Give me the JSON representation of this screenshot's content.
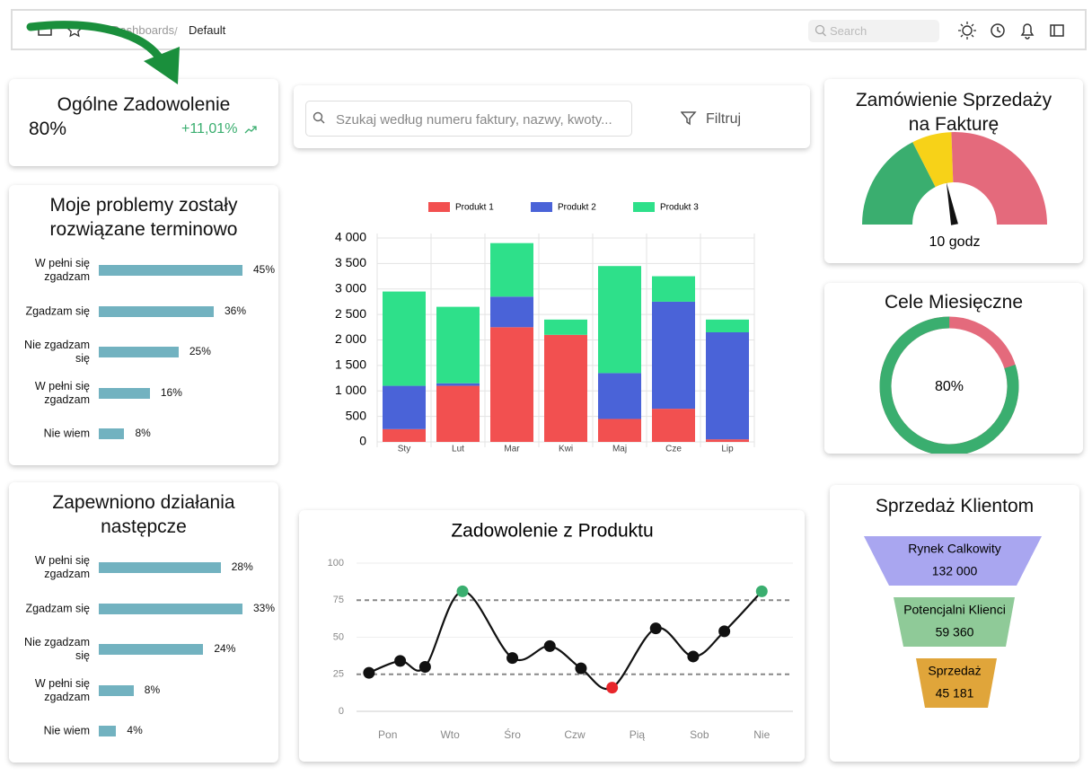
{
  "topbar": {
    "breadcrumb": [
      "Dashboards",
      "Default"
    ],
    "search_placeholder": "Search"
  },
  "satisfaction": {
    "title": "Ogólne Zadowolenie",
    "value": "80%",
    "change": "+11,01%"
  },
  "search": {
    "placeholder": "Szukaj według numeru faktury, nazwy, kwoty...",
    "filter": "Filtruj"
  },
  "gauge": {
    "title": "Zamówienie Sprzedaży na Fakturę",
    "label": "10 godz",
    "colors": [
      "#3aae6f",
      "#f7d218",
      "#e46a7c"
    ]
  },
  "donut": {
    "title": "Cele Miesięczne",
    "value": 80,
    "label": "80%",
    "colors": [
      "#3aae6f",
      "#e46a7c"
    ]
  },
  "funnel": {
    "title": "Sprzedaż Klientom",
    "stages": [
      {
        "name": "Rynek Calkowity",
        "label": "132 000",
        "color": "#a9a6f0"
      },
      {
        "name": "Potencjalni Klienci",
        "label": "59 360",
        "color": "#8fca98"
      },
      {
        "name": "Sprzedaż",
        "label": "45 181",
        "color": "#e0a53a"
      }
    ]
  },
  "chart_data": [
    {
      "type": "hbar",
      "title": "Moje problemy zostały rozwiązane terminowo",
      "categories": [
        "W pełni się zgadzam",
        "Zgadzam się",
        "Nie zgadzam się",
        "W pełni się zgadzam",
        "Nie wiem"
      ],
      "values": [
        45,
        36,
        25,
        16,
        8
      ],
      "value_labels": [
        "45%",
        "36%",
        "25%",
        "16%",
        "8%"
      ],
      "color": "#72b2c0"
    },
    {
      "type": "hbar",
      "title": "Zapewniono działania następcze",
      "categories": [
        "W pełni się zgadzam",
        "Zgadzam się",
        "Nie zgadzam się",
        "W pełni się zgadzam",
        "Nie wiem"
      ],
      "values": [
        28,
        33,
        24,
        8,
        4
      ],
      "value_labels": [
        "28%",
        "33%",
        "24%",
        "8%",
        "4%"
      ],
      "color": "#72b2c0"
    },
    {
      "type": "stacked_bar",
      "categories": [
        "Sty",
        "Lut",
        "Mar",
        "Kwi",
        "Maj",
        "Cze",
        "Lip"
      ],
      "series": [
        {
          "name": "Produkt 1",
          "color": "#f25050",
          "values": [
            250,
            1100,
            2250,
            2100,
            450,
            650,
            50
          ]
        },
        {
          "name": "Produkt 2",
          "color": "#4a63d8",
          "values": [
            850,
            50,
            600,
            0,
            900,
            2100,
            2100
          ]
        },
        {
          "name": "Produkt 3",
          "color": "#2ee08a",
          "values": [
            1850,
            1500,
            1050,
            300,
            2100,
            500,
            250
          ]
        }
      ],
      "ylim": [
        0,
        4000
      ],
      "yticks": [
        0,
        500,
        {
          "value": 1000,
          "label": "1 000"
        },
        {
          "value": 1500,
          "label": "1 500"
        },
        {
          "value": 2000,
          "label": "2 000"
        },
        {
          "value": 2500,
          "label": "2 500"
        },
        {
          "value": 3000,
          "label": "3 000"
        },
        {
          "value": 3500,
          "label": "3 500"
        },
        {
          "value": 4000,
          "label": "4 000"
        }
      ],
      "grid": true,
      "legend": "top"
    },
    {
      "type": "line",
      "title": "Zadowolenie z Produktu",
      "x": [
        -0.3,
        0.2,
        0.6,
        1.2,
        2,
        2.6,
        3.1,
        3.6,
        4.3,
        4.9,
        5.4,
        6
      ],
      "series": [
        {
          "name": "Zadowolenie",
          "color": "#111111",
          "values": [
            26,
            34,
            30,
            81,
            36,
            44,
            29,
            16,
            56,
            37,
            54,
            81
          ]
        }
      ],
      "xlim": [
        -0.5,
        6.5
      ],
      "xticks": [
        {
          "value": 0,
          "label": "Pon"
        },
        {
          "value": 1,
          "label": "Wto"
        },
        {
          "value": 2,
          "label": "Śro"
        },
        {
          "value": 3,
          "label": "Czw"
        },
        {
          "value": 4,
          "label": "Pią"
        },
        {
          "value": 5,
          "label": "Sob"
        },
        {
          "value": 6,
          "label": "Nie"
        }
      ],
      "ylim": [
        0,
        100
      ],
      "yticks": [
        0,
        25,
        50,
        75,
        100
      ],
      "grid": true,
      "max_color": "#3aae6f",
      "min_color": "#e8262b"
    }
  ]
}
